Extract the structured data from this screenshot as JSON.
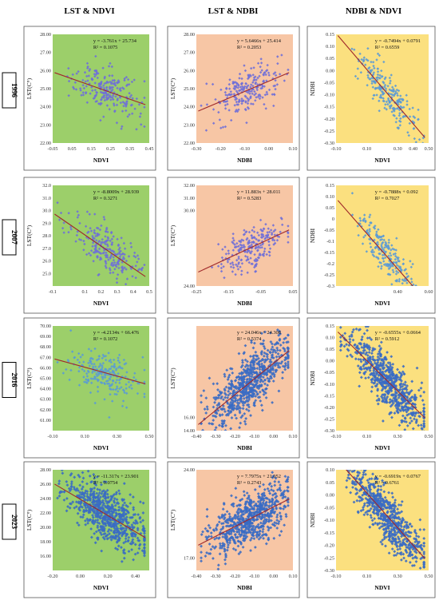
{
  "header": {
    "columns": [
      "LST & NDVI",
      "LST & NDBI",
      "NDBI & NDVI"
    ],
    "rows": [
      "1996",
      "2007",
      "2016",
      "2023"
    ]
  },
  "colors": {
    "green_bg": "#9ccf6a",
    "salmon_bg": "#f7c6a5",
    "yellow_bg": "#fbe07f",
    "purple_point": "#6f6fd8",
    "blue_point": "#5a9ad6",
    "trend_line": "#a0282a",
    "dense_blue": "#3a6cc4"
  },
  "chart_data": [
    {
      "id": "lst-ndvi-1996",
      "type": "scatter",
      "row": 0,
      "col": 0,
      "xlabel": "NDVI",
      "ylabel": "LST(C°)",
      "xlim": [
        -0.05,
        0.45
      ],
      "ylim": [
        22.0,
        28.0
      ],
      "xticks": [
        "-0.05",
        "0.05",
        "0.15",
        "0.25",
        "0.35",
        "0.45"
      ],
      "yticks": [
        "22.00",
        "23.00",
        "24.00",
        "25.00",
        "26.00",
        "27.00",
        "28.00"
      ],
      "equation": "y = -3.761x + 25.734",
      "r2": "R² = 0.1075",
      "slope": -3.761,
      "intercept": 25.734,
      "point_color": "purple_point",
      "bg": "green_bg"
    },
    {
      "id": "lst-ndbi-1996",
      "type": "scatter",
      "row": 0,
      "col": 1,
      "xlabel": "NDBI",
      "ylabel": "LST(C°)",
      "xlim": [
        -0.3,
        0.1
      ],
      "ylim": [
        22.0,
        28.0
      ],
      "xticks": [
        "-0.30",
        "-0.20",
        "-0.10",
        "0.00",
        "0.10"
      ],
      "yticks": [
        "22.00",
        "23.00",
        "24.00",
        "25.00",
        "26.00",
        "27.00",
        "28.00"
      ],
      "equation": "y = 5.6466x + 25.414",
      "r2": "R² = 0.2053",
      "slope": 5.6466,
      "intercept": 25.414,
      "point_color": "purple_point",
      "bg": "salmon_bg"
    },
    {
      "id": "ndbi-ndvi-1996",
      "type": "scatter",
      "row": 0,
      "col": 2,
      "xlabel": "NDVI",
      "ylabel": "NDBI",
      "xlim": [
        -0.1,
        0.5
      ],
      "ylim": [
        -0.3,
        0.15
      ],
      "xticks": [
        "-0.10",
        "0.10",
        "0.30",
        "0.40",
        "0.50"
      ],
      "yticks": [
        "0.15",
        "0.10",
        "0.05",
        "0.00",
        "-0.05",
        "-0.10",
        "-0.15",
        "-0.20",
        "-0.25",
        "-0.30"
      ],
      "equation": "y = -0.7494x + 0.0791",
      "r2": "R² = 0.6559",
      "slope": -0.7494,
      "intercept": 0.0791,
      "point_color": "blue_point",
      "bg": "yellow_bg"
    },
    {
      "id": "lst-ndvi-2007",
      "type": "scatter",
      "row": 1,
      "col": 0,
      "xlabel": "NDVI",
      "ylabel": "LST(C°)",
      "xlim": [
        -0.1,
        0.5
      ],
      "ylim": [
        24.0,
        32.0
      ],
      "xticks": [
        "-0.1",
        "0.1",
        "0.2",
        "0.3",
        "0.4",
        "0.5"
      ],
      "yticks": [
        "25.0",
        "26.0",
        "27.0",
        "28.0",
        "29.0",
        "30.0",
        "31.0",
        "32.0"
      ],
      "equation": "y = -8.8009x + 28.939",
      "r2": "R² = 0.3271",
      "slope": -8.8009,
      "intercept": 28.939,
      "point_color": "purple_point",
      "bg": "green_bg"
    },
    {
      "id": "lst-ndbi-2007",
      "type": "scatter",
      "row": 1,
      "col": 1,
      "xlabel": "NDBI",
      "ylabel": "LST(C°)",
      "xlim": [
        -0.25,
        0.05
      ],
      "ylim": [
        24.0,
        32.0
      ],
      "xticks": [
        "-0.25",
        "-0.15",
        "-0.05",
        "0.05"
      ],
      "yticks": [
        "24.00",
        "30.00",
        "31.00",
        "32.00"
      ],
      "equation": "y = 11.883x + 28.011",
      "r2": "R² = 0.5283",
      "slope": 11.883,
      "intercept": 28.011,
      "point_color": "purple_point",
      "bg": "salmon_bg"
    },
    {
      "id": "ndbi-ndvi-2007",
      "type": "scatter",
      "row": 1,
      "col": 2,
      "xlabel": "NDVI",
      "ylabel": "NDBI",
      "xlim": [
        0.0,
        0.6
      ],
      "ylim": [
        -0.3,
        0.15
      ],
      "xticks": [
        "0.40",
        "0.60"
      ],
      "yticks": [
        "0.15",
        "0.10",
        "0.05",
        "0",
        "-0.05",
        "-0.1",
        "-0.15",
        "-0.2",
        "-0.25",
        "-0.3"
      ],
      "equation": "y = -0.7888x + 0.092",
      "r2": "R² = 0.7027",
      "slope": -0.7888,
      "intercept": 0.092,
      "point_color": "blue_point",
      "bg": "yellow_bg"
    },
    {
      "id": "lst-ndvi-2016",
      "type": "scatter",
      "row": 2,
      "col": 0,
      "xlabel": "NDVI",
      "ylabel": "LST(C°)",
      "xlim": [
        -0.1,
        0.5
      ],
      "ylim": [
        60.0,
        70.0
      ],
      "xticks": [
        "-0.10",
        "0.10",
        "0.30",
        "0.50"
      ],
      "yticks": [
        "61.00",
        "62.00",
        "63.00",
        "64.00",
        "65.00",
        "66.00",
        "67.00",
        "68.00",
        "69.00",
        "70.00"
      ],
      "equation": "y = -4.2134x + 66.476",
      "r2": "R² = 0.1072",
      "slope": -4.2134,
      "intercept": 66.476,
      "point_color": "blue_point",
      "bg": "green_bg"
    },
    {
      "id": "lst-ndbi-2016",
      "type": "scatter",
      "row": 2,
      "col": 1,
      "xlabel": "NDBI",
      "ylabel": "LST(C°)",
      "xlim": [
        -0.4,
        0.1
      ],
      "ylim": [
        14.0,
        30.0
      ],
      "xticks": [
        "-0.40",
        "-0.30",
        "-0.20",
        "-0.10",
        "0.00",
        "0.10"
      ],
      "yticks": [
        "14.00",
        "16.00"
      ],
      "equation": "y = 24.046x + 24.308",
      "r2": "R² = 0.5374",
      "slope": 24.046,
      "intercept": 24.308,
      "point_color": "dense_blue",
      "bg": "salmon_bg"
    },
    {
      "id": "ndbi-ndvi-2016",
      "type": "scatter",
      "row": 2,
      "col": 2,
      "xlabel": "NDVI",
      "ylabel": "NDBI",
      "xlim": [
        -0.1,
        0.5
      ],
      "ylim": [
        -0.3,
        0.15
      ],
      "xticks": [
        "-0.10",
        "0.10",
        "0.30",
        "0.50"
      ],
      "yticks": [
        "0.15",
        "0.10",
        "0.05",
        "0.00",
        "-0.05",
        "-0.10",
        "-0.15",
        "-0.20",
        "-0.25",
        "-0.30"
      ],
      "equation": "y = -0.6555x + 0.0664",
      "r2": "R² = 0.5912",
      "slope": -0.6555,
      "intercept": 0.0664,
      "point_color": "dense_blue",
      "bg": "yellow_bg"
    },
    {
      "id": "lst-ndvi-2023",
      "type": "scatter",
      "row": 3,
      "col": 0,
      "xlabel": "NDVI",
      "ylabel": "LST(C°)",
      "xlim": [
        -0.2,
        0.5
      ],
      "ylim": [
        14.0,
        28.0
      ],
      "xticks": [
        "-0.20",
        "0.00",
        "0.20",
        "0.40"
      ],
      "yticks": [
        "16.00",
        "18.00",
        "20.00",
        "22.00",
        "24.00",
        "26.00",
        "28.00"
      ],
      "equation": "y = -11.317x + 23.901",
      "r2": "R² = 0.0754",
      "slope": -11.317,
      "intercept": 23.901,
      "point_color": "dense_blue",
      "bg": "green_bg"
    },
    {
      "id": "lst-ndbi-2023",
      "type": "scatter",
      "row": 3,
      "col": 1,
      "xlabel": "NDBI",
      "ylabel": "LST(C°)",
      "xlim": [
        -0.4,
        0.1
      ],
      "ylim": [
        16.0,
        24.0
      ],
      "xticks": [
        "-0.40",
        "-0.30",
        "-0.20",
        "-0.10",
        "0.00",
        "0.10"
      ],
      "yticks": [
        "17.00",
        "24.00"
      ],
      "equation": "y = 7.7975x + 21.052",
      "r2": "R² = 0.2743",
      "slope": 7.7975,
      "intercept": 21.052,
      "point_color": "dense_blue",
      "bg": "salmon_bg"
    },
    {
      "id": "ndbi-ndvi-2023",
      "type": "scatter",
      "row": 3,
      "col": 2,
      "xlabel": "NDVI",
      "ylabel": "NDBI",
      "xlim": [
        -0.1,
        0.5
      ],
      "ylim": [
        -0.3,
        0.1
      ],
      "xticks": [
        "-0.10",
        "0.10",
        "0.30",
        "0.50"
      ],
      "yticks": [
        "0.10",
        "0.05",
        "0.00",
        "-0.05",
        "-0.10",
        "-0.15",
        "-0.20",
        "-0.25",
        "-0.30"
      ],
      "equation": "y = -0.6919x + 0.0767",
      "r2": "R² = 0.6761",
      "slope": -0.6919,
      "intercept": 0.0767,
      "point_color": "dense_blue",
      "bg": "yellow_bg"
    }
  ]
}
